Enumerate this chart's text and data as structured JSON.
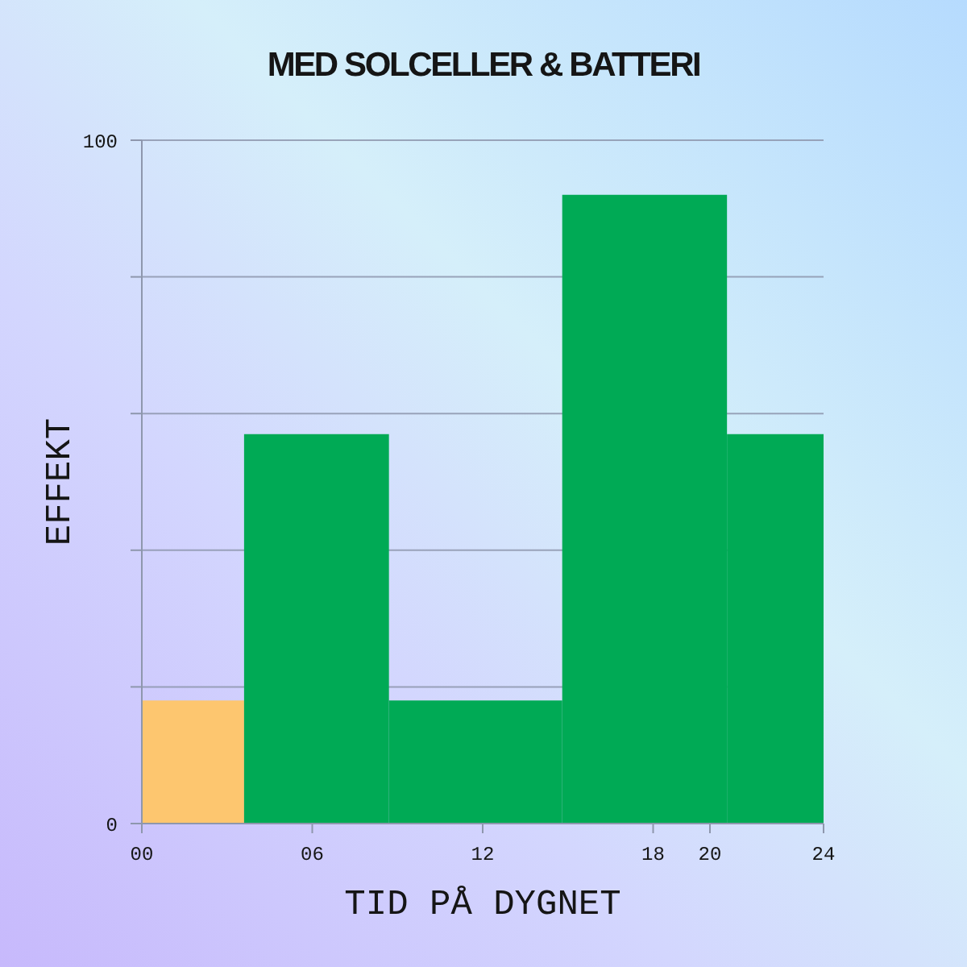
{
  "chart_data": {
    "type": "histogram",
    "title": "MED SOLCELLER & BATTERI",
    "xlabel": "TID PÅ DYGNET",
    "ylabel": "EFFEKT",
    "bins": [
      0,
      3.6,
      8.7,
      14.8,
      20.6,
      24
    ],
    "values": [
      18,
      57,
      18,
      92,
      57
    ],
    "colors": [
      "#fdc66f",
      "#00aa55",
      "#00aa55",
      "#00aa55",
      "#00aa55"
    ],
    "xlim": [
      0,
      24
    ],
    "xticks": [
      {
        "value": 0,
        "label": "00"
      },
      {
        "value": 6,
        "label": "06"
      },
      12,
      18,
      20,
      24
    ],
    "ylim": [
      0,
      100
    ],
    "yticks": [
      0,
      {
        "value": 20,
        "label": null
      },
      {
        "value": 40,
        "label": null
      },
      {
        "value": 60,
        "label": null
      },
      {
        "value": 80,
        "label": null
      },
      100
    ],
    "grid": "y"
  }
}
